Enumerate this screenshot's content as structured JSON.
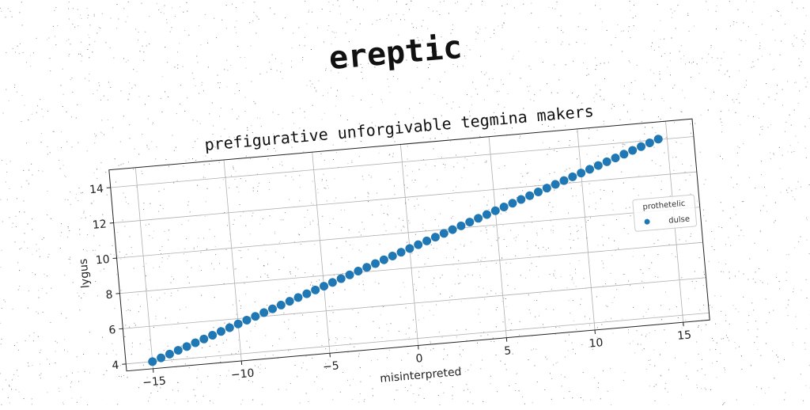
{
  "suptitle": "ereptic",
  "colors": {
    "series": "#1f77b4",
    "grid": "#b0b0b0",
    "axes": "#222222"
  },
  "chart_data": {
    "type": "scatter",
    "title": "prefigurative unforgivable tegmina makers",
    "xlabel": "misinterpreted",
    "ylabel": "lygus",
    "xlim": [
      -16.5,
      16.5
    ],
    "ylim": [
      3.6,
      15.0
    ],
    "xticks": [
      -15,
      -10,
      -5,
      0,
      5,
      10,
      15
    ],
    "xtick_labels": [
      "−15",
      "−10",
      "−5",
      "0",
      "5",
      "10",
      "15"
    ],
    "yticks": [
      4,
      6,
      8,
      10,
      12,
      14
    ],
    "ytick_labels": [
      "4",
      "6",
      "8",
      "10",
      "12",
      "14"
    ],
    "grid": true,
    "legend": {
      "title": "prothetelic",
      "placement": "right"
    },
    "series": [
      {
        "name": "dulse",
        "x": [
          -15,
          -14.5,
          -14,
          -13.5,
          -13,
          -12.5,
          -12,
          -11.5,
          -11,
          -10.5,
          -10,
          -9.5,
          -9,
          -8.5,
          -8,
          -7.5,
          -7,
          -6.5,
          -6,
          -5.5,
          -5,
          -4.5,
          -4,
          -3.5,
          -3,
          -2.5,
          -2,
          -1.5,
          -1,
          -0.5,
          0,
          0.5,
          1,
          1.5,
          2,
          2.5,
          3,
          3.5,
          4,
          4.5,
          5,
          5.5,
          6,
          6.5,
          7,
          7.5,
          8,
          8.5,
          9,
          9.5,
          10,
          10.5,
          11,
          11.5,
          12,
          12.5,
          13,
          13.5,
          14,
          14.5
        ],
        "y": [
          4.0,
          4.17,
          4.34,
          4.51,
          4.68,
          4.85,
          5.02,
          5.19,
          5.36,
          5.53,
          5.7,
          5.87,
          6.04,
          6.21,
          6.38,
          6.55,
          6.72,
          6.89,
          7.06,
          7.23,
          7.4,
          7.57,
          7.74,
          7.91,
          8.08,
          8.25,
          8.42,
          8.59,
          8.76,
          8.93,
          9.1,
          9.27,
          9.44,
          9.61,
          9.78,
          9.95,
          10.12,
          10.29,
          10.46,
          10.63,
          10.8,
          10.97,
          11.14,
          11.31,
          11.48,
          11.65,
          11.82,
          11.99,
          12.16,
          12.33,
          12.5,
          12.67,
          12.84,
          13.01,
          13.18,
          13.35,
          13.52,
          13.69,
          13.86,
          14.03
        ]
      }
    ]
  }
}
